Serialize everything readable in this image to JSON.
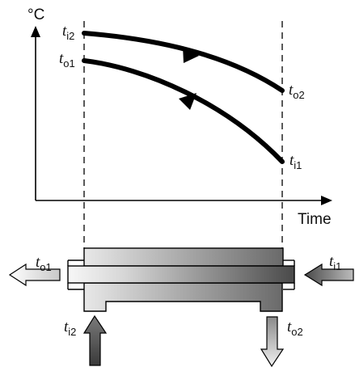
{
  "axes": {
    "y_unit": "°C",
    "x_label": "Time"
  },
  "curves": [
    {
      "id": "hot",
      "start_label": {
        "var": "t",
        "sub": "i2"
      },
      "end_label": {
        "var": "t",
        "sub": "o2"
      },
      "direction": "forward"
    },
    {
      "id": "cold",
      "start_label": {
        "var": "t",
        "sub": "o1"
      },
      "end_label": {
        "var": "t",
        "sub": "i1"
      },
      "direction": "backward"
    }
  ],
  "exchanger": {
    "left_outlet": {
      "var": "t",
      "sub": "o1"
    },
    "right_inlet": {
      "var": "t",
      "sub": "i1"
    },
    "bottom_inlet": {
      "var": "t",
      "sub": "i2"
    },
    "bottom_outlet": {
      "var": "t",
      "sub": "o2"
    }
  },
  "colors": {
    "line": "#000000",
    "gradient_light": "#f4f4f4",
    "gradient_dark": "#555555",
    "arrow_light": "#e6e6e6",
    "arrow_dark": "#5a5a5a"
  }
}
